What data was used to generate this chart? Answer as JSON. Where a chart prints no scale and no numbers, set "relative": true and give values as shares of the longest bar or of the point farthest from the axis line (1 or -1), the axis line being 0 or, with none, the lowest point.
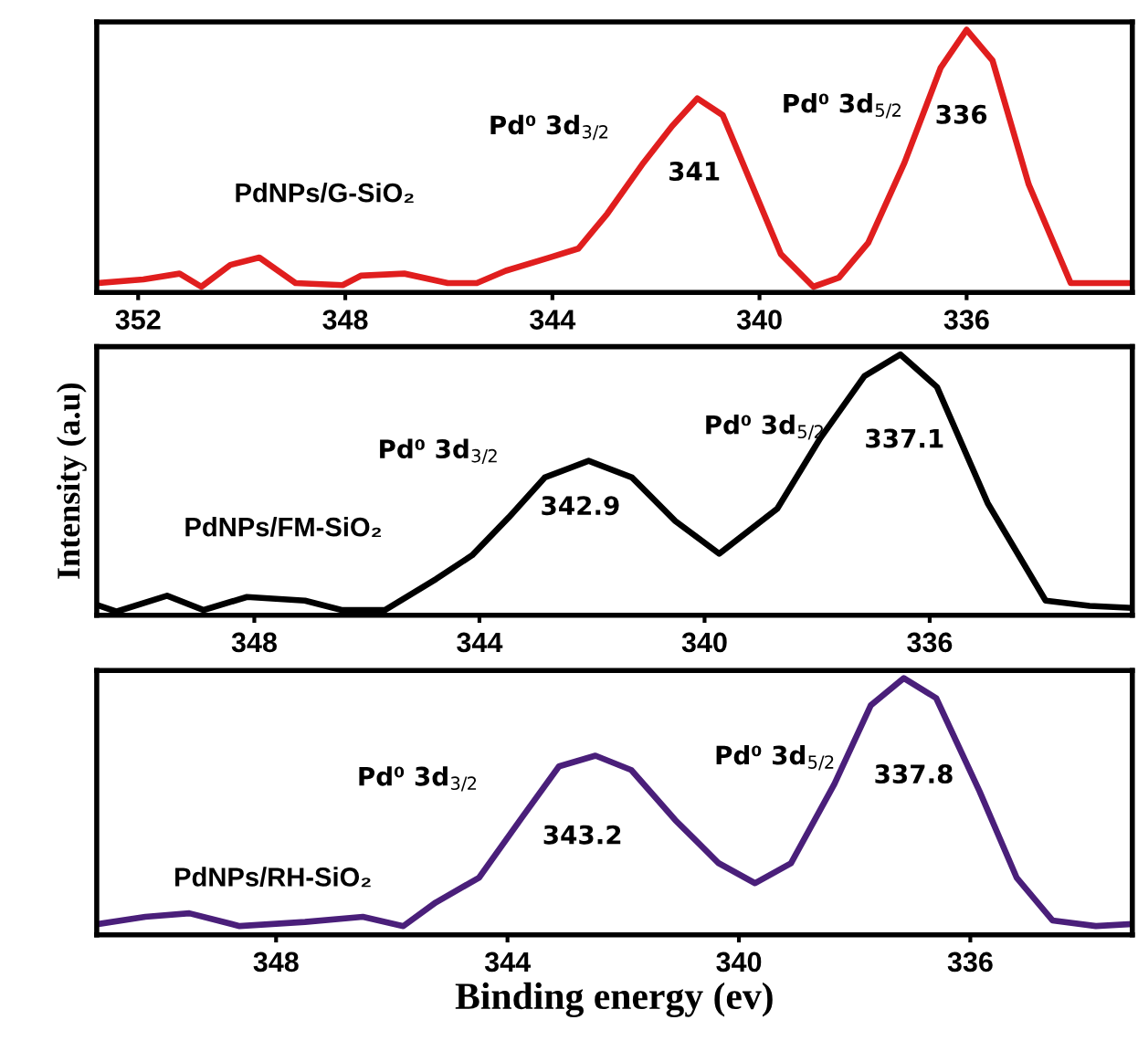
{
  "chart_data": [
    {
      "type": "line",
      "relative": true,
      "tick_labels": "x",
      "xlim": [
        352.8,
        332.8
      ],
      "xticks": [
        352,
        348,
        344,
        340,
        336
      ],
      "grid": false,
      "legend": false,
      "series": [
        {
          "name": "PdNPs/G-SiO₂",
          "color": "#e01e1e",
          "x": [
            352.8,
            351.9,
            351.2,
            350.78,
            350.22,
            349.66,
            348.96,
            348.05,
            347.7,
            346.86,
            346.02,
            345.46,
            344.9,
            344.06,
            343.5,
            342.94,
            342.24,
            341.69,
            341.2,
            340.71,
            340.15,
            339.59,
            338.96,
            338.47,
            337.9,
            337.2,
            336.5,
            336.0,
            335.5,
            334.8,
            333.99,
            332.8
          ],
          "values": [
            0.036,
            0.05,
            0.072,
            0.022,
            0.105,
            0.133,
            0.036,
            0.028,
            0.064,
            0.072,
            0.036,
            0.036,
            0.083,
            0.133,
            0.167,
            0.3,
            0.494,
            0.633,
            0.739,
            0.675,
            0.411,
            0.147,
            0.022,
            0.056,
            0.189,
            0.494,
            0.856,
            1,
            0.883,
            0.411,
            0.036,
            0.036
          ]
        }
      ],
      "annotations": [
        "Pd⁰ 3d$_{3/2}$",
        "341",
        "Pd⁰ 3d$_{5/2}$",
        "336"
      ]
    },
    {
      "type": "line",
      "relative": true,
      "tick_labels": "x",
      "xlim": [
        350.8,
        332.4
      ],
      "xticks": [
        348,
        344,
        340,
        336
      ],
      "grid": false,
      "legend": false,
      "ylabel": "Intensity (a.u)",
      "series": [
        {
          "name": "PdNPs/FM-SiO₂",
          "color": "#000000",
          "x": [
            350.8,
            350.45,
            349.55,
            348.9,
            348.13,
            347.1,
            346.45,
            345.68,
            344.77,
            344.13,
            343.48,
            342.84,
            342.06,
            341.29,
            340.52,
            339.74,
            338.71,
            337.94,
            337.16,
            336.52,
            335.87,
            334.97,
            333.94,
            333.16,
            332.4
          ],
          "values": [
            0.04,
            0.014,
            0.075,
            0.02,
            0.07,
            0.056,
            0.02,
            0.02,
            0.139,
            0.23,
            0.375,
            0.528,
            0.592,
            0.528,
            0.361,
            0.236,
            0.408,
            0.68,
            0.917,
            1,
            0.875,
            0.43,
            0.056,
            0.036,
            0.028
          ]
        }
      ],
      "annotations": [
        "Pd⁰ 3d$_{3/2}$",
        "342.9",
        "Pd⁰ 3d$_{5/2}$",
        "337.1"
      ]
    },
    {
      "type": "line",
      "relative": true,
      "tick_labels": "x",
      "xlim": [
        351.1,
        333.2
      ],
      "xticks": [
        348,
        344,
        340,
        336
      ],
      "grid": false,
      "legend": false,
      "xlabel": "Binding energy (ev)",
      "series": [
        {
          "name": "PdNPs/RH-SiO₂",
          "color": "#4a1f7a",
          "x": [
            351.07,
            350.26,
            349.5,
            348.63,
            347.5,
            346.5,
            345.8,
            345.24,
            344.49,
            343.74,
            343.11,
            342.48,
            341.86,
            341.1,
            340.35,
            339.72,
            339.1,
            338.35,
            337.72,
            337.15,
            336.59,
            335.84,
            335.2,
            334.58,
            333.83,
            333.2
          ],
          "values": [
            0.042,
            0.07,
            0.084,
            0.034,
            0.05,
            0.07,
            0.034,
            0.126,
            0.223,
            0.46,
            0.656,
            0.698,
            0.642,
            0.447,
            0.279,
            0.201,
            0.279,
            0.587,
            0.894,
            1,
            0.922,
            0.559,
            0.223,
            0.056,
            0.034,
            0.042
          ]
        }
      ],
      "annotations": [
        "Pd⁰ 3d$_{3/2}$",
        "343.2",
        "Pd⁰ 3d$_{5/2}$",
        "337.8"
      ]
    }
  ]
}
